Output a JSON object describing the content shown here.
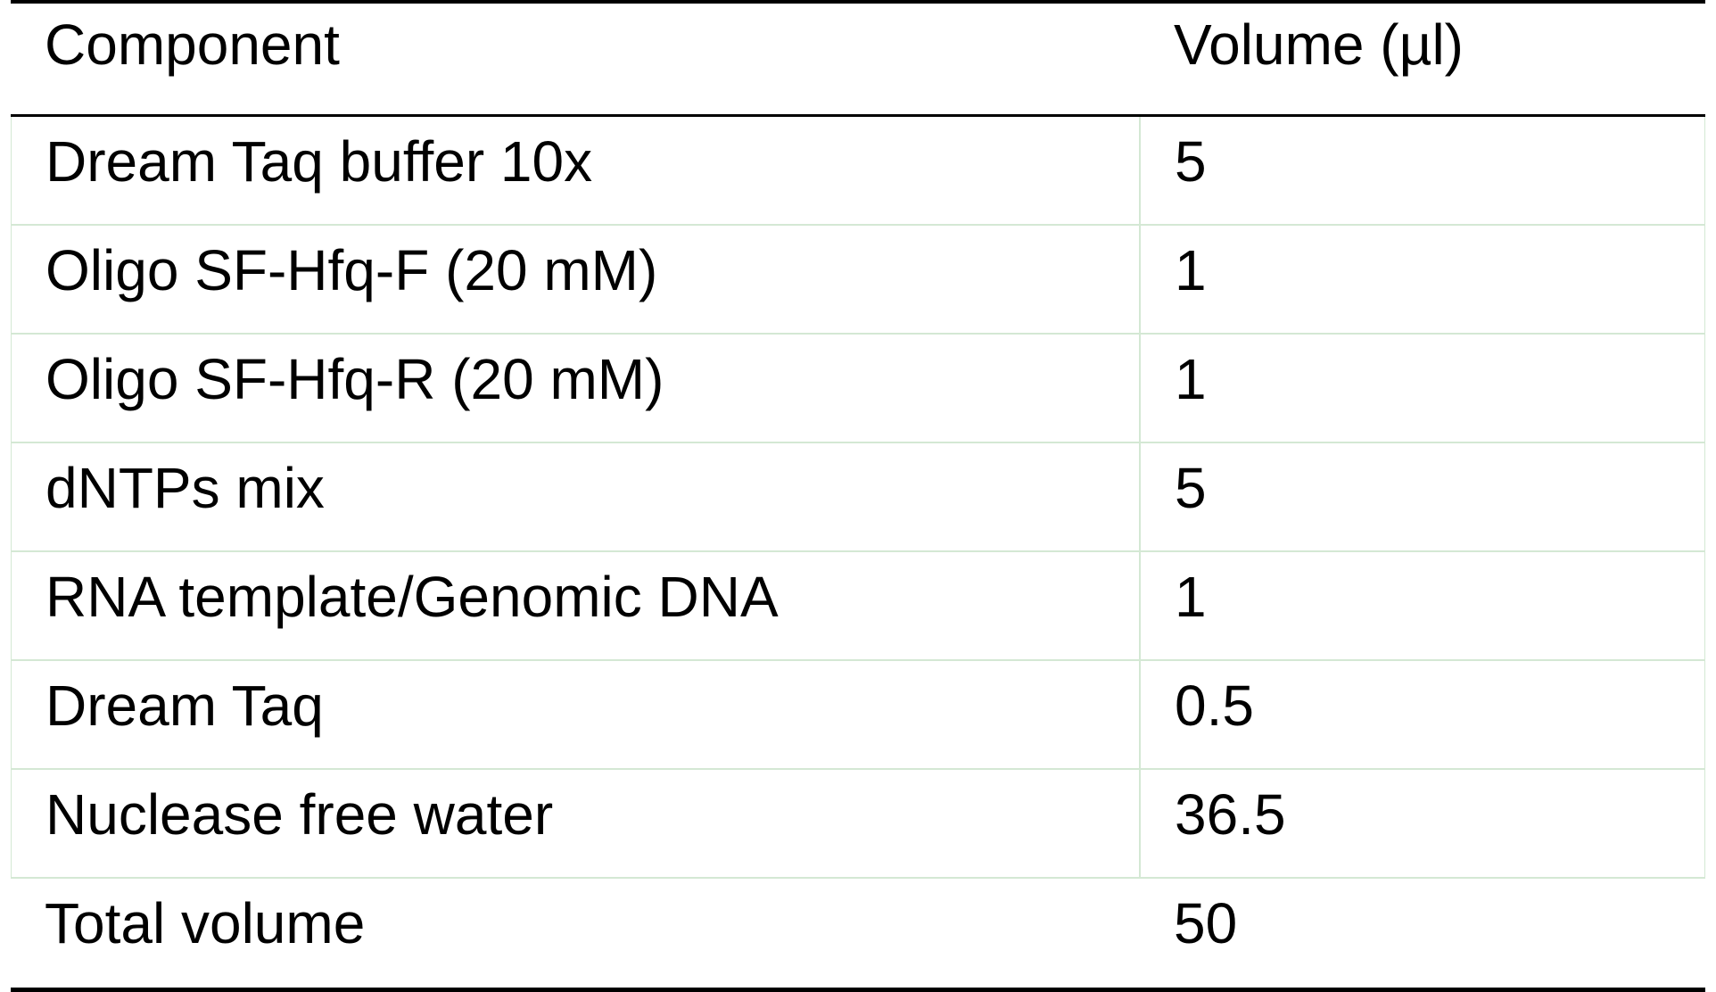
{
  "table": {
    "headers": {
      "component": "Component",
      "volume": "Volume (µl)"
    },
    "rows": [
      {
        "component": "Dream Taq buffer 10x",
        "volume": "5"
      },
      {
        "component": "Oligo SF-Hfq-F (20 mM)",
        "volume": "1"
      },
      {
        "component": "Oligo SF-Hfq-R (20 mM)",
        "volume": "1"
      },
      {
        "component": "dNTPs mix",
        "volume": "5"
      },
      {
        "component": "RNA template/Genomic DNA",
        "volume": "1"
      },
      {
        "component": "Dream Taq",
        "volume": "0.5"
      },
      {
        "component": "Nuclease free water",
        "volume": "36.5"
      }
    ],
    "total": {
      "component": "Total volume",
      "volume": "50"
    }
  }
}
